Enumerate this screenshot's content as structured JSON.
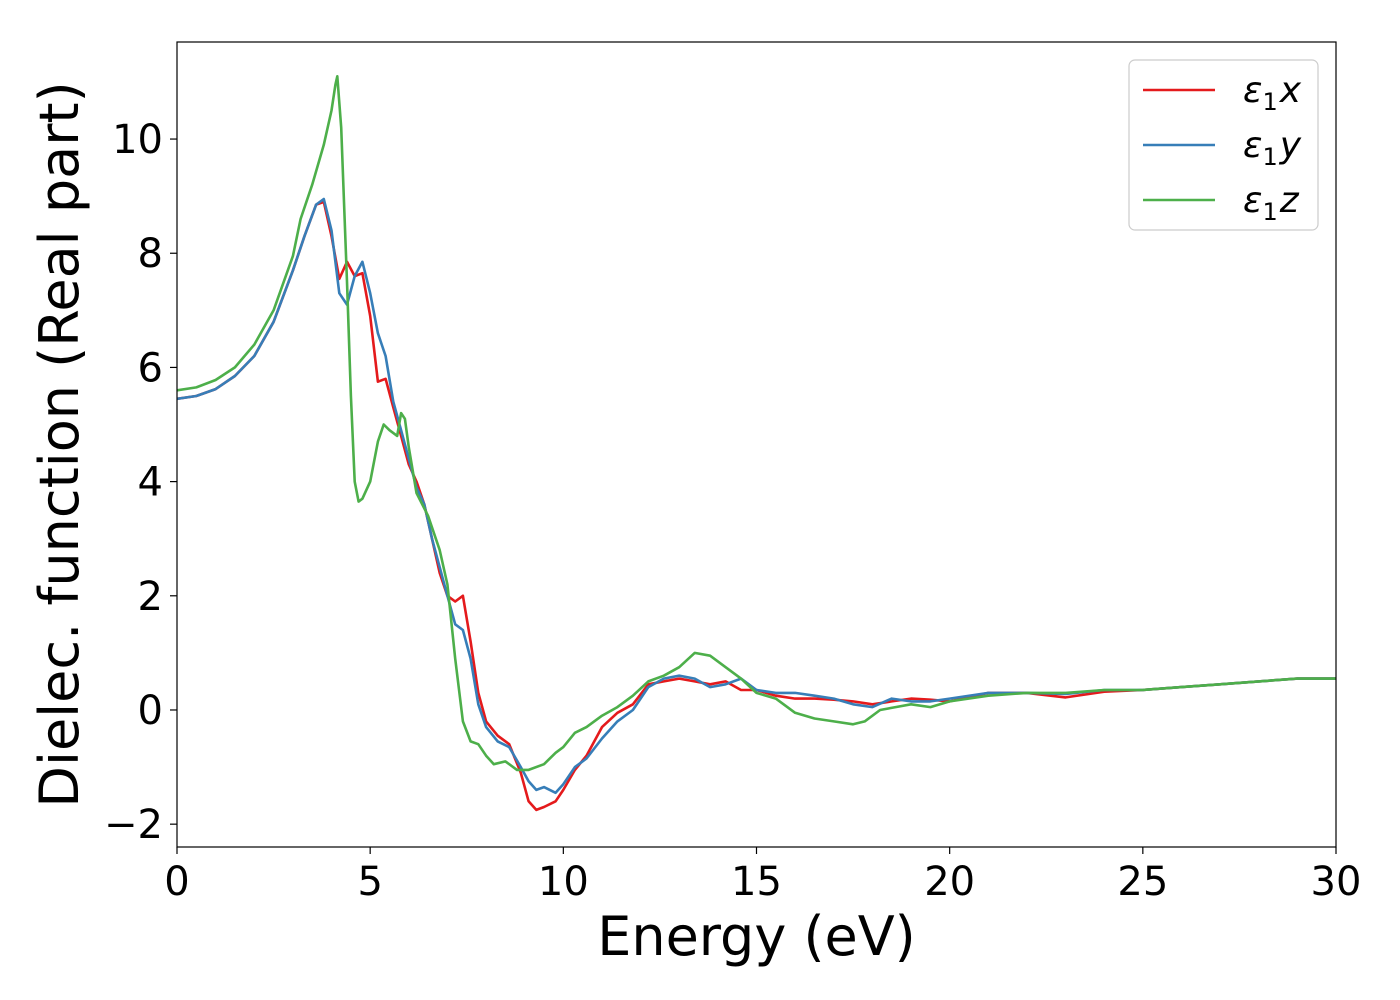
{
  "chart_data": {
    "type": "line",
    "xlabel": "Energy (eV)",
    "ylabel": "Dielec. function (Real part)",
    "xlim": [
      0,
      30
    ],
    "ylim": [
      -2.4,
      11.7
    ],
    "xticks": [
      0,
      5,
      10,
      15,
      20,
      25,
      30
    ],
    "yticks": [
      -2,
      0,
      2,
      4,
      6,
      8,
      10
    ],
    "ytick_labels": [
      "−2",
      "0",
      "2",
      "4",
      "6",
      "8",
      "10"
    ],
    "grid": false,
    "legend_position": "top-right",
    "series": [
      {
        "name": "ε1x",
        "legend_main": "ε",
        "legend_sub": "1",
        "legend_var": "x",
        "color": "#e41a1c",
        "x": [
          0,
          0.5,
          1,
          1.5,
          2,
          2.5,
          3,
          3.3,
          3.6,
          3.8,
          4.0,
          4.2,
          4.4,
          4.6,
          4.8,
          5.0,
          5.2,
          5.4,
          5.6,
          5.8,
          6.0,
          6.2,
          6.4,
          6.6,
          6.8,
          7.0,
          7.2,
          7.4,
          7.6,
          7.8,
          8.0,
          8.3,
          8.6,
          8.9,
          9.1,
          9.3,
          9.5,
          9.8,
          10.0,
          10.3,
          10.6,
          11.0,
          11.4,
          11.8,
          12.2,
          12.6,
          13.0,
          13.4,
          13.8,
          14.2,
          14.6,
          15.0,
          15.5,
          16.0,
          16.5,
          17.0,
          17.5,
          18.0,
          18.5,
          19.0,
          19.5,
          20.0,
          21.0,
          22.0,
          23.0,
          24.0,
          25.0,
          26.0,
          27.0,
          28.0,
          29.0,
          30.0
        ],
        "y": [
          5.45,
          5.5,
          5.62,
          5.85,
          6.2,
          6.8,
          7.7,
          8.3,
          8.85,
          8.9,
          8.3,
          7.55,
          7.85,
          7.6,
          7.65,
          6.9,
          5.75,
          5.8,
          5.3,
          4.8,
          4.3,
          4.0,
          3.6,
          3.0,
          2.4,
          2.0,
          1.9,
          2.0,
          1.2,
          0.3,
          -0.2,
          -0.45,
          -0.6,
          -1.1,
          -1.6,
          -1.75,
          -1.7,
          -1.6,
          -1.4,
          -1.05,
          -0.8,
          -0.3,
          -0.05,
          0.1,
          0.45,
          0.5,
          0.55,
          0.5,
          0.45,
          0.5,
          0.35,
          0.35,
          0.25,
          0.2,
          0.2,
          0.18,
          0.15,
          0.1,
          0.15,
          0.2,
          0.18,
          0.15,
          0.3,
          0.3,
          0.22,
          0.32,
          0.35,
          0.4,
          0.45,
          0.5,
          0.55,
          0.55
        ]
      },
      {
        "name": "ε1y",
        "legend_main": "ε",
        "legend_sub": "1",
        "legend_var": "y",
        "color": "#377eb8",
        "x": [
          0,
          0.5,
          1,
          1.5,
          2,
          2.5,
          3,
          3.3,
          3.6,
          3.8,
          4.0,
          4.2,
          4.4,
          4.6,
          4.8,
          5.0,
          5.2,
          5.4,
          5.6,
          5.8,
          6.0,
          6.2,
          6.4,
          6.6,
          6.8,
          7.0,
          7.2,
          7.4,
          7.6,
          7.8,
          8.0,
          8.3,
          8.6,
          8.9,
          9.1,
          9.3,
          9.5,
          9.8,
          10.0,
          10.3,
          10.6,
          11.0,
          11.4,
          11.8,
          12.2,
          12.6,
          13.0,
          13.4,
          13.8,
          14.2,
          14.6,
          15.0,
          15.5,
          16.0,
          16.5,
          17.0,
          17.5,
          18.0,
          18.5,
          19.0,
          19.5,
          20.0,
          21.0,
          22.0,
          23.0,
          24.0,
          25.0,
          26.0,
          27.0,
          28.0,
          29.0,
          30.0
        ],
        "y": [
          5.45,
          5.5,
          5.62,
          5.85,
          6.2,
          6.8,
          7.7,
          8.3,
          8.85,
          8.95,
          8.4,
          7.3,
          7.1,
          7.6,
          7.85,
          7.3,
          6.6,
          6.2,
          5.4,
          4.9,
          4.4,
          3.9,
          3.6,
          3.0,
          2.5,
          2.0,
          1.5,
          1.4,
          0.9,
          0.1,
          -0.3,
          -0.55,
          -0.65,
          -1.0,
          -1.25,
          -1.4,
          -1.35,
          -1.45,
          -1.3,
          -1.0,
          -0.85,
          -0.5,
          -0.2,
          0.0,
          0.4,
          0.55,
          0.6,
          0.55,
          0.4,
          0.45,
          0.55,
          0.35,
          0.3,
          0.3,
          0.25,
          0.2,
          0.1,
          0.05,
          0.2,
          0.15,
          0.15,
          0.2,
          0.3,
          0.3,
          0.28,
          0.35,
          0.35,
          0.4,
          0.45,
          0.5,
          0.55,
          0.55
        ]
      },
      {
        "name": "ε1z",
        "legend_main": "ε",
        "legend_sub": "1",
        "legend_var": "z",
        "color": "#4daf4a",
        "x": [
          0,
          0.5,
          1,
          1.5,
          2,
          2.5,
          3,
          3.2,
          3.5,
          3.8,
          4.0,
          4.1,
          4.15,
          4.25,
          4.4,
          4.5,
          4.6,
          4.7,
          4.8,
          5.0,
          5.2,
          5.35,
          5.5,
          5.7,
          5.8,
          5.9,
          6.0,
          6.2,
          6.5,
          6.8,
          7.0,
          7.2,
          7.4,
          7.6,
          7.8,
          8.0,
          8.2,
          8.5,
          8.8,
          9.1,
          9.5,
          9.8,
          10.0,
          10.3,
          10.6,
          11.0,
          11.4,
          11.8,
          12.2,
          12.6,
          13.0,
          13.4,
          13.8,
          14.2,
          14.6,
          15.0,
          15.5,
          16.0,
          16.5,
          17.0,
          17.5,
          17.8,
          18.2,
          18.6,
          19.0,
          19.5,
          20.0,
          21.0,
          22.0,
          23.0,
          24.0,
          25.0,
          26.0,
          27.0,
          28.0,
          29.0,
          30.0
        ],
        "y": [
          5.6,
          5.65,
          5.78,
          6.0,
          6.4,
          7.0,
          7.95,
          8.6,
          9.2,
          9.9,
          10.5,
          10.95,
          11.1,
          10.2,
          7.5,
          5.5,
          4.0,
          3.65,
          3.7,
          4.0,
          4.7,
          5.0,
          4.9,
          4.8,
          5.2,
          5.1,
          4.6,
          3.8,
          3.4,
          2.8,
          2.2,
          0.9,
          -0.2,
          -0.55,
          -0.6,
          -0.8,
          -0.95,
          -0.9,
          -1.05,
          -1.05,
          -0.95,
          -0.75,
          -0.65,
          -0.4,
          -0.3,
          -0.1,
          0.05,
          0.25,
          0.5,
          0.6,
          0.75,
          1.0,
          0.95,
          0.75,
          0.55,
          0.3,
          0.2,
          -0.05,
          -0.15,
          -0.2,
          -0.25,
          -0.2,
          0.0,
          0.05,
          0.1,
          0.05,
          0.15,
          0.25,
          0.3,
          0.3,
          0.35,
          0.35,
          0.4,
          0.45,
          0.5,
          0.55,
          0.55
        ]
      }
    ]
  }
}
